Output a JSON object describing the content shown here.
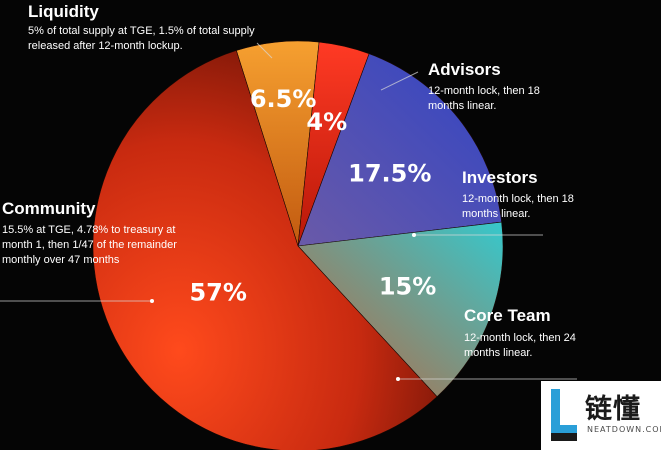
{
  "chart_data": {
    "type": "pie",
    "slices": [
      {
        "label": "Liquidity",
        "value": 6.5,
        "display": "6.5%",
        "color": "#f08a1c",
        "description": "5% of total supply at TGE, 1.5% of total supply released after 12-month lockup."
      },
      {
        "label": "Advisors",
        "value": 4,
        "display": "4%",
        "color": "#f0261a",
        "description": "12-month lock, then 18 months linear."
      },
      {
        "label": "Investors",
        "value": 17.5,
        "display": "17.5%",
        "color": "#3b47b0",
        "description": "12-month lock, then 18 months linear."
      },
      {
        "label": "Core Team",
        "value": 15,
        "display": "15%",
        "color": "#3ec2c6",
        "description": "12-month lock, then 24 months linear."
      },
      {
        "label": "Community",
        "value": 57,
        "display": "57%",
        "color": "#e8401a",
        "description": "15.5% at TGE, 4.78% to treasury at month 1, then 1/47 of the remainder monthly over 47 months"
      }
    ]
  },
  "watermark": {
    "text": "链懂",
    "url": "NEATDOWN.COM"
  }
}
